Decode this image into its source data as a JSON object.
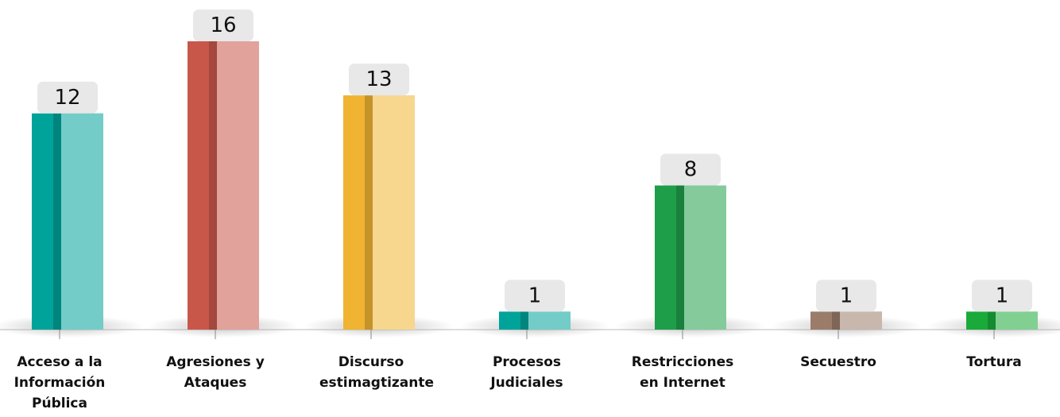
{
  "chart_data": {
    "type": "bar",
    "categories": [
      "Acceso a la Información Pública",
      "Agresiones y Ataques",
      "Discurso estimagtizante",
      "Procesos Judiciales",
      "Restricciones en Internet",
      "Secuestro",
      "Tortura"
    ],
    "values": [
      12,
      16,
      13,
      1,
      8,
      1,
      1
    ],
    "colors": [
      "#00a39a",
      "#c8574a",
      "#f0b432",
      "#00a39a",
      "#1f9e4a",
      "#9b7c6a",
      "#1aaa3a"
    ],
    "ylim": [
      0,
      16
    ]
  }
}
